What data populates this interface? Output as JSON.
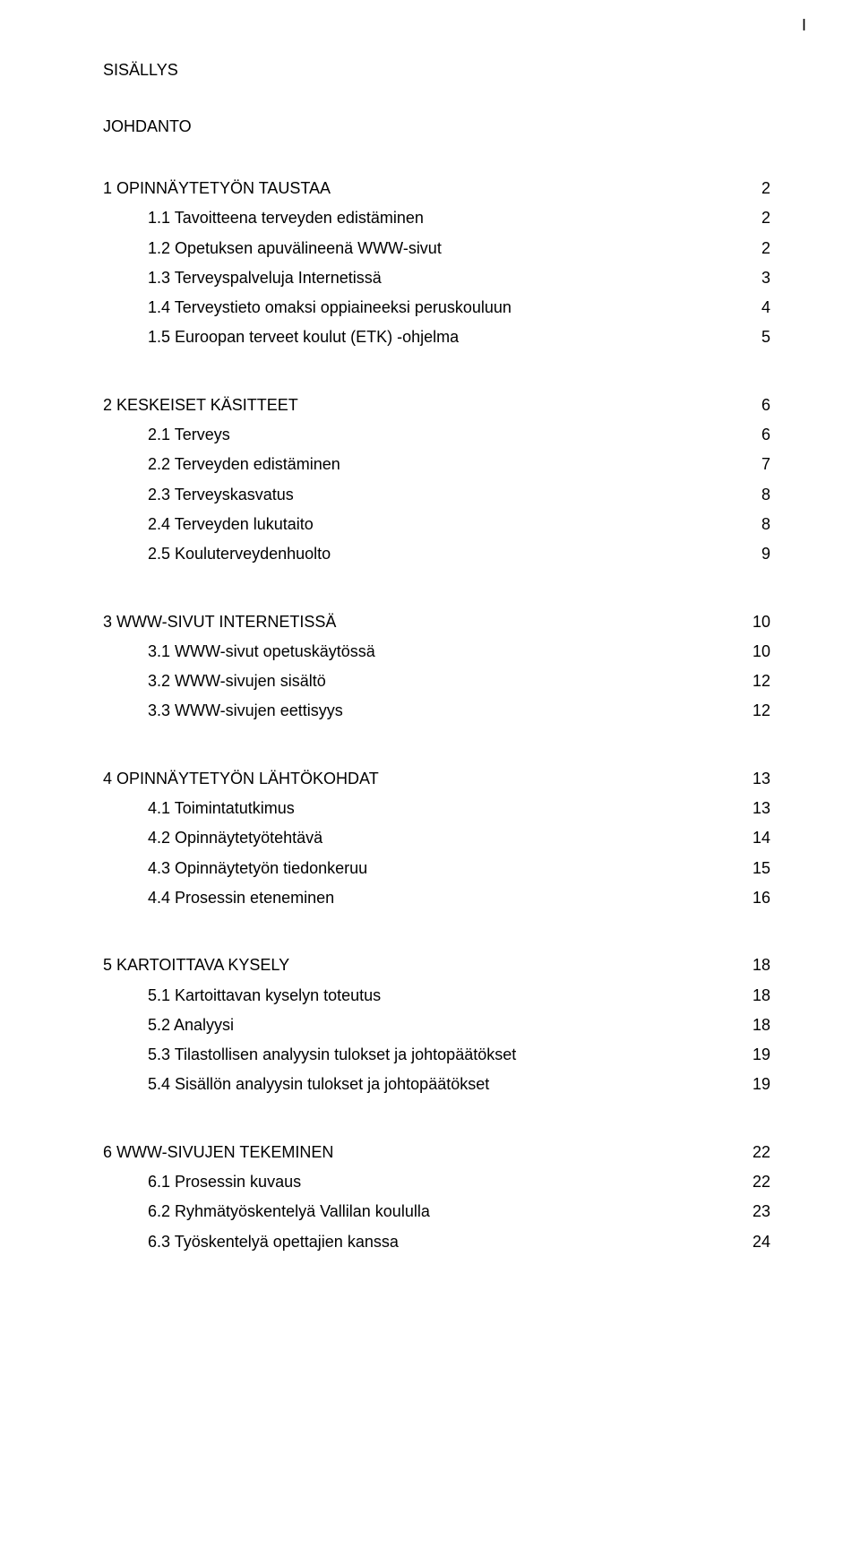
{
  "page_marker": "I",
  "title_main": "SISÄLLYS",
  "title_intro": "JOHDANTO",
  "sections": [
    {
      "head": {
        "label": "1 OPINNÄYTETYÖN TAUSTAA",
        "page": "2"
      },
      "items": [
        {
          "label": "1.1 Tavoitteena terveyden edistäminen",
          "page": "2"
        },
        {
          "label": "1.2 Opetuksen apuvälineenä WWW-sivut",
          "page": "2"
        },
        {
          "label": "1.3 Terveyspalveluja Internetissä",
          "page": "3"
        },
        {
          "label": "1.4 Terveystieto omaksi oppiaineeksi peruskouluun",
          "page": "4"
        },
        {
          "label": "1.5 Euroopan terveet koulut (ETK) -ohjelma",
          "page": "5"
        }
      ]
    },
    {
      "head": {
        "label": "2 KESKEISET KÄSITTEET",
        "page": "6"
      },
      "items": [
        {
          "label": "2.1 Terveys",
          "page": "6"
        },
        {
          "label": "2.2 Terveyden edistäminen",
          "page": "7"
        },
        {
          "label": "2.3 Terveyskasvatus",
          "page": "8"
        },
        {
          "label": "2.4 Terveyden lukutaito",
          "page": "8"
        },
        {
          "label": "2.5 Kouluterveydenhuolto",
          "page": "9"
        }
      ]
    },
    {
      "head": {
        "label": "3 WWW-SIVUT INTERNETISSÄ",
        "page": "10"
      },
      "items": [
        {
          "label": "3.1 WWW-sivut opetuskäytössä",
          "page": "10"
        },
        {
          "label": "3.2 WWW-sivujen sisältö",
          "page": "12"
        },
        {
          "label": "3.3 WWW-sivujen eettisyys",
          "page": "12"
        }
      ]
    },
    {
      "head": {
        "label": "4 OPINNÄYTETYÖN LÄHTÖKOHDAT",
        "page": "13"
      },
      "items": [
        {
          "label": "4.1 Toimintatutkimus",
          "page": "13"
        },
        {
          "label": "4.2 Opinnäytetyötehtävä",
          "page": "14"
        },
        {
          "label": "4.3 Opinnäytetyön tiedonkeruu",
          "page": "15"
        },
        {
          "label": "4.4 Prosessin eteneminen",
          "page": "16"
        }
      ]
    },
    {
      "head": {
        "label": "5 KARTOITTAVA KYSELY",
        "page": "18"
      },
      "items": [
        {
          "label": "5.1 Kartoittavan kyselyn toteutus",
          "page": "18"
        },
        {
          "label": "5.2 Analyysi",
          "page": "18"
        },
        {
          "label": "5.3 Tilastollisen analyysin tulokset ja johtopäätökset",
          "page": "19"
        },
        {
          "label": "5.4 Sisällön analyysin tulokset ja johtopäätökset",
          "page": "19"
        }
      ]
    },
    {
      "head": {
        "label": "6 WWW-SIVUJEN TEKEMINEN",
        "page": "22"
      },
      "items": [
        {
          "label": "6.1 Prosessin kuvaus",
          "page": "22"
        },
        {
          "label": "6.2 Ryhmätyöskentelyä Vallilan koululla",
          "page": "23"
        },
        {
          "label": "6.3 Työskentelyä opettajien kanssa",
          "page": "24"
        }
      ]
    }
  ]
}
